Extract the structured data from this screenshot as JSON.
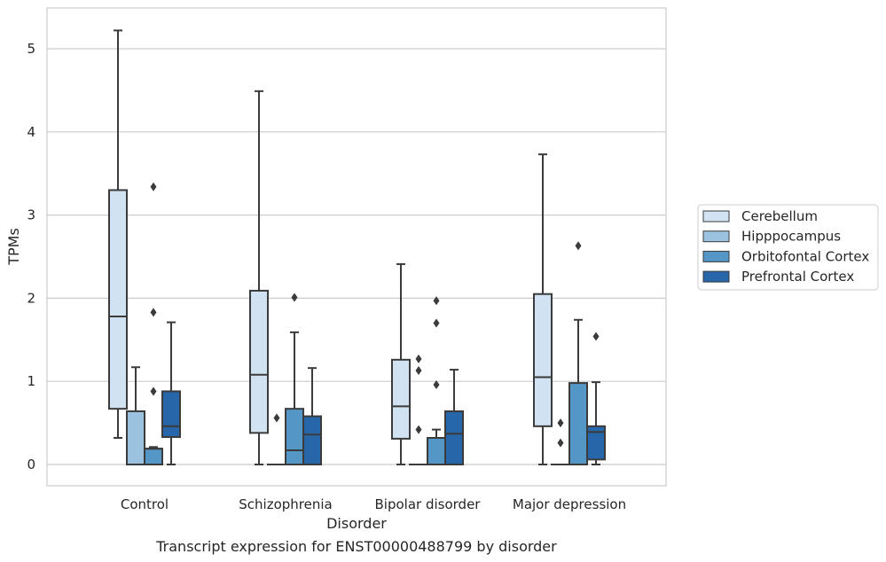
{
  "chart_data": {
    "type": "boxplot",
    "title": "Transcript expression for ENST00000488799 by disorder",
    "xlabel": "Disorder",
    "ylabel": "TPMs",
    "ylim": [
      -0.25,
      5.5
    ],
    "yticks": [
      "0",
      "1",
      "2",
      "3",
      "4",
      "5"
    ],
    "grid": true,
    "legend_position": "right",
    "categories": [
      "Control",
      "Schizophrenia",
      "Bipolar disorder",
      "Major depression"
    ],
    "series": [
      {
        "name": "Cerebellum",
        "color": "#d1e2f2",
        "boxes": [
          {
            "whislo": 0.32,
            "q1": 0.67,
            "med": 1.78,
            "q3": 3.3,
            "whishi": 5.22,
            "fliers": []
          },
          {
            "whislo": 0.0,
            "q1": 0.38,
            "med": 1.08,
            "q3": 2.09,
            "whishi": 4.49,
            "fliers": []
          },
          {
            "whislo": 0.0,
            "q1": 0.31,
            "med": 0.7,
            "q3": 1.26,
            "whishi": 2.41,
            "fliers": []
          },
          {
            "whislo": 0.0,
            "q1": 0.46,
            "med": 1.05,
            "q3": 2.05,
            "whishi": 3.73,
            "fliers": []
          }
        ]
      },
      {
        "name": "Hipppocampus",
        "color": "#9bc3df",
        "boxes": [
          {
            "whislo": 0.0,
            "q1": 0.0,
            "med": 0.0,
            "q3": 0.64,
            "whishi": 1.17,
            "fliers": []
          },
          {
            "whislo": 0.0,
            "q1": 0.0,
            "med": 0.0,
            "q3": 0.0,
            "whishi": 0.0,
            "fliers": [
              0.56
            ]
          },
          {
            "whislo": 0.0,
            "q1": 0.0,
            "med": 0.0,
            "q3": 0.0,
            "whishi": 0.0,
            "fliers": [
              0.42,
              1.13,
              1.27
            ]
          },
          {
            "whislo": 0.0,
            "q1": 0.0,
            "med": 0.0,
            "q3": 0.0,
            "whishi": 0.0,
            "fliers": [
              0.26,
              0.5
            ]
          }
        ]
      },
      {
        "name": "Orbitofontal Cortex",
        "color": "#5496c6",
        "boxes": [
          {
            "whislo": 0.0,
            "q1": 0.0,
            "med": 0.19,
            "q3": 0.19,
            "whishi": 0.21,
            "fliers": [
              0.88,
              1.83,
              3.34
            ]
          },
          {
            "whislo": 0.0,
            "q1": 0.0,
            "med": 0.17,
            "q3": 0.67,
            "whishi": 1.59,
            "fliers": [
              2.01
            ]
          },
          {
            "whislo": 0.0,
            "q1": 0.0,
            "med": 0.0,
            "q3": 0.32,
            "whishi": 0.42,
            "fliers": [
              0.96,
              1.7,
              1.97
            ]
          },
          {
            "whislo": 0.0,
            "q1": 0.0,
            "med": 0.0,
            "q3": 0.98,
            "whishi": 1.74,
            "fliers": [
              2.63
            ]
          }
        ]
      },
      {
        "name": "Prefrontal Cortex",
        "color": "#2766a8",
        "boxes": [
          {
            "whislo": 0.0,
            "q1": 0.33,
            "med": 0.46,
            "q3": 0.88,
            "whishi": 1.71,
            "fliers": []
          },
          {
            "whislo": 0.0,
            "q1": 0.0,
            "med": 0.36,
            "q3": 0.58,
            "whishi": 1.16,
            "fliers": []
          },
          {
            "whislo": 0.0,
            "q1": 0.0,
            "med": 0.37,
            "q3": 0.64,
            "whishi": 1.14,
            "fliers": []
          },
          {
            "whislo": 0.0,
            "q1": 0.06,
            "med": 0.39,
            "q3": 0.46,
            "whishi": 0.99,
            "fliers": [
              1.54
            ]
          }
        ]
      }
    ]
  }
}
